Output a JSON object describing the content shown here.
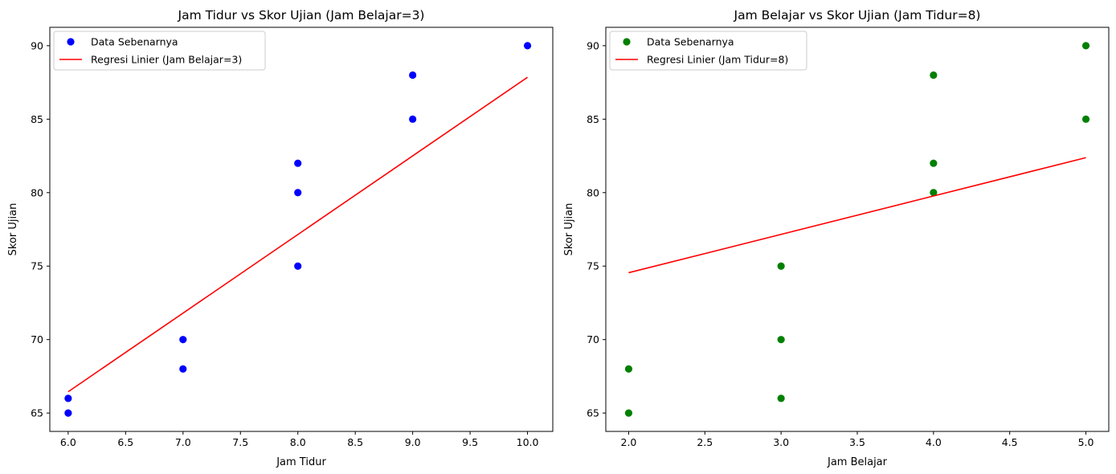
{
  "chart_data": [
    {
      "type": "scatter",
      "title": "Jam Tidur vs Skor Ujian (Jam Belajar=3)",
      "xlabel": "Jam Tidur",
      "ylabel": "Skor Ujian",
      "xlim": [
        5.84,
        10.22
      ],
      "ylim": [
        63.75,
        91.25
      ],
      "xticks": [
        6.0,
        6.5,
        7.0,
        7.5,
        8.0,
        8.5,
        9.0,
        9.5,
        10.0
      ],
      "xtick_labels": [
        "6.0",
        "6.5",
        "7.0",
        "7.5",
        "8.0",
        "8.5",
        "9.0",
        "9.5",
        "10.0"
      ],
      "yticks": [
        65,
        70,
        75,
        80,
        85,
        90
      ],
      "ytick_labels": [
        "65",
        "70",
        "75",
        "80",
        "85",
        "90"
      ],
      "grid": false,
      "legend_position": "upper-left",
      "series": [
        {
          "name": "Data Sebenarnya",
          "kind": "scatter",
          "color": "#0000ff",
          "points": [
            [
              6,
              65
            ],
            [
              6,
              66
            ],
            [
              7,
              68
            ],
            [
              7,
              70
            ],
            [
              8,
              75
            ],
            [
              8,
              80
            ],
            [
              8,
              82
            ],
            [
              9,
              85
            ],
            [
              9,
              88
            ],
            [
              10,
              90
            ]
          ]
        },
        {
          "name": "Regresi Linier (Jam Belajar=3)",
          "kind": "line",
          "color": "#ff0000",
          "points": [
            [
              6,
              66.45
            ],
            [
              10,
              87.85
            ]
          ]
        }
      ]
    },
    {
      "type": "scatter",
      "title": "Jam Belajar vs Skor Ujian (Jam Tidur=8)",
      "xlabel": "Jam Belajar",
      "ylabel": "Skor Ujian",
      "xlim": [
        1.85,
        5.15
      ],
      "ylim": [
        63.75,
        91.25
      ],
      "xticks": [
        2.0,
        2.5,
        3.0,
        3.5,
        4.0,
        4.5,
        5.0
      ],
      "xtick_labels": [
        "2.0",
        "2.5",
        "3.0",
        "3.5",
        "4.0",
        "4.5",
        "5.0"
      ],
      "yticks": [
        65,
        70,
        75,
        80,
        85,
        90
      ],
      "ytick_labels": [
        "65",
        "70",
        "75",
        "80",
        "85",
        "90"
      ],
      "grid": false,
      "legend_position": "upper-left",
      "series": [
        {
          "name": "Data Sebenarnya",
          "kind": "scatter",
          "color": "#008000",
          "points": [
            [
              2,
              65
            ],
            [
              2,
              68
            ],
            [
              3,
              66
            ],
            [
              3,
              70
            ],
            [
              3,
              75
            ],
            [
              4,
              80
            ],
            [
              4,
              82
            ],
            [
              4,
              88
            ],
            [
              5,
              85
            ],
            [
              5,
              90
            ]
          ]
        },
        {
          "name": "Regresi Linier (Jam Tidur=8)",
          "kind": "line",
          "color": "#ff0000",
          "points": [
            [
              2,
              74.55
            ],
            [
              5,
              82.38
            ]
          ]
        }
      ]
    }
  ]
}
